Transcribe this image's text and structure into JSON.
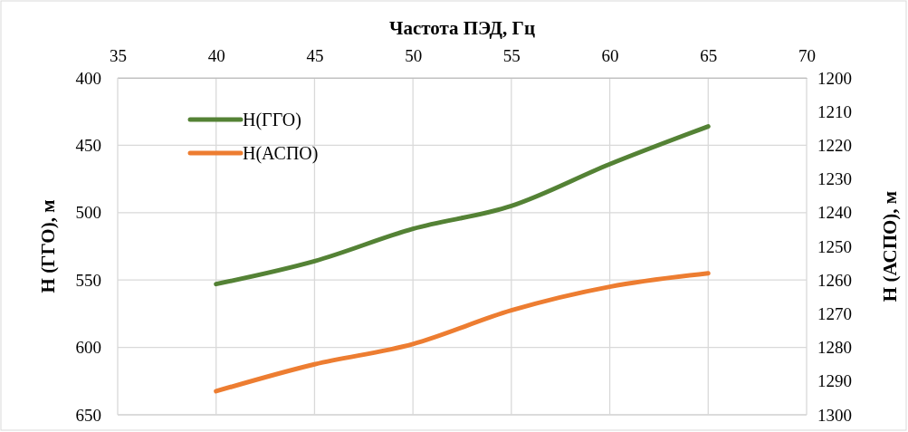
{
  "chart_data": {
    "type": "line",
    "xlabel": "Частота ПЭД, Гц",
    "ylabel": "H (ГГО), м",
    "y2label": "H (АСПО), м",
    "x": [
      40,
      45,
      50,
      55,
      60,
      65
    ],
    "series": [
      {
        "name": "H(ГГО)",
        "color": "#548235",
        "values": [
          553,
          536,
          512,
          495,
          464,
          436
        ]
      },
      {
        "name": "H(АСПО)",
        "color": "#ed7d31",
        "values": [
          1293,
          1285,
          1279,
          1269,
          1262,
          1258
        ],
        "axis": "y2"
      }
    ],
    "xlim": [
      35,
      70
    ],
    "xticks": [
      35,
      40,
      45,
      50,
      55,
      60,
      65,
      70
    ],
    "ylim": [
      650,
      400
    ],
    "yticks": [
      400,
      450,
      500,
      550,
      600,
      650
    ],
    "y2lim": [
      1300,
      1200
    ],
    "y2ticks": [
      1200,
      1210,
      1220,
      1230,
      1240,
      1250,
      1260,
      1270,
      1280,
      1290,
      1300
    ],
    "grid": true,
    "legend": "top left",
    "line_style": "solid",
    "marker": "none"
  }
}
